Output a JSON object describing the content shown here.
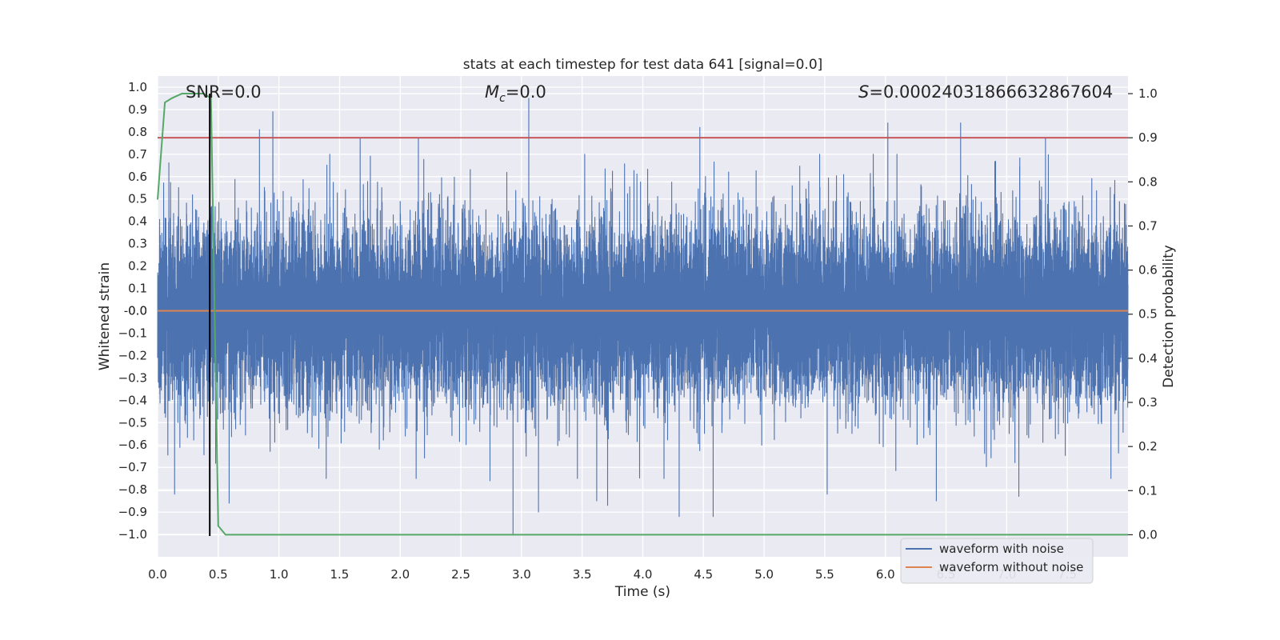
{
  "chart_data": {
    "type": "line",
    "title": "stats at each timestep for test data 641 [signal=0.0]",
    "xlabel": "Time (s)",
    "ylabel": "Whitened strain",
    "y2label": "Detection probability",
    "xlim": [
      0.0,
      8.0
    ],
    "ylim": [
      -1.1,
      1.05
    ],
    "y2lim": [
      -0.05,
      1.04
    ],
    "xticks": [
      "0.0",
      "0.5",
      "1.0",
      "1.5",
      "2.0",
      "2.5",
      "3.0",
      "3.5",
      "4.0",
      "4.5",
      "5.0",
      "5.5",
      "6.0",
      "6.5",
      "7.0",
      "7.5"
    ],
    "xtick_values": [
      0.0,
      0.5,
      1.0,
      1.5,
      2.0,
      2.5,
      3.0,
      3.5,
      4.0,
      4.5,
      5.0,
      5.5,
      6.0,
      6.5,
      7.0,
      7.5
    ],
    "yticks": [
      "1.0",
      "0.9",
      "0.8",
      "0.7",
      "0.6",
      "0.5",
      "0.4",
      "0.3",
      "0.2",
      "0.1",
      "0.0",
      "-0.0",
      "−0.1",
      "−0.2",
      "−0.3",
      "−0.4",
      "−0.5",
      "−0.6",
      "−0.7",
      "−0.8",
      "−0.9",
      "−1.0"
    ],
    "ytick_values": [
      1.0,
      0.9,
      0.8,
      0.7,
      0.6,
      0.5,
      0.4,
      0.3,
      0.2,
      0.1,
      0.0,
      -0.0,
      -0.1,
      -0.2,
      -0.3,
      -0.4,
      -0.5,
      -0.6,
      -0.7,
      -0.8,
      -0.9,
      -1.0
    ],
    "y2ticks": [
      "1.0",
      "0.9",
      "0.8",
      "0.7",
      "0.6",
      "0.5",
      "0.4",
      "0.3",
      "0.2",
      "0.1",
      "0.0"
    ],
    "y2tick_values": [
      1.0,
      0.9,
      0.8,
      0.7,
      0.6,
      0.5,
      0.4,
      0.3,
      0.2,
      0.1,
      0.0
    ],
    "annotations": {
      "snr": "SNR=0.0",
      "mc_symbol": "M",
      "mc_sub": "c",
      "mc_value": "=0.0",
      "s_symbol": "S",
      "s_value": "=0.00024031866632867604"
    },
    "threshold": {
      "value": 0.9,
      "axis": "y2",
      "color": "#c44e52"
    },
    "vertical_marker": {
      "x": 0.43,
      "color": "#000000"
    },
    "series": [
      {
        "name": "waveform with noise",
        "axis": "y",
        "color": "#4c72b0",
        "sample_rate": 2048,
        "duration": 8.0,
        "noise_std": 0.2,
        "peaks": [
          {
            "t": 0.95,
            "v": 0.89
          },
          {
            "t": 3.06,
            "v": 0.95
          },
          {
            "t": 6.62,
            "v": 0.84
          },
          {
            "t": 6.02,
            "v": 0.84
          },
          {
            "t": 4.47,
            "v": 0.82
          },
          {
            "t": 0.84,
            "v": 0.81
          },
          {
            "t": 2.15,
            "v": 0.77
          },
          {
            "t": 1.67,
            "v": 0.77
          },
          {
            "t": 7.32,
            "v": 0.77
          },
          {
            "t": 2.93,
            "v": -1.0
          },
          {
            "t": 3.14,
            "v": -0.9
          },
          {
            "t": 4.58,
            "v": -0.92
          },
          {
            "t": 4.3,
            "v": -0.92
          },
          {
            "t": 0.14,
            "v": -0.82
          },
          {
            "t": 7.1,
            "v": -0.83
          },
          {
            "t": 0.59,
            "v": -0.86
          },
          {
            "t": 3.71,
            "v": -0.87
          },
          {
            "t": 5.52,
            "v": -0.82
          },
          {
            "t": 6.42,
            "v": -0.85
          },
          {
            "t": 1.39,
            "v": -0.75
          },
          {
            "t": 3.62,
            "v": -0.85
          },
          {
            "t": 2.74,
            "v": -0.76
          }
        ]
      },
      {
        "name": "waveform without noise",
        "axis": "y",
        "color": "#dd8452",
        "x": [
          0.0,
          8.0
        ],
        "y": [
          0.0,
          0.0
        ]
      },
      {
        "name": "detection probability",
        "axis": "y2",
        "color": "#55a868",
        "x": [
          0.0,
          0.06,
          0.12,
          0.2,
          0.3,
          0.38,
          0.44,
          0.5,
          0.56,
          8.0
        ],
        "y": [
          0.76,
          0.98,
          0.99,
          1.0,
          1.0,
          1.0,
          0.99,
          0.02,
          0.0,
          0.0
        ]
      }
    ],
    "legend": {
      "position": "lower-right",
      "entries": [
        {
          "label": "waveform with noise",
          "color": "#4c72b0"
        },
        {
          "label": "waveform without noise",
          "color": "#dd8452"
        }
      ]
    },
    "colors": {
      "axes_bg": "#eaeaf2",
      "grid": "#ffffff",
      "text": "#262626"
    }
  }
}
